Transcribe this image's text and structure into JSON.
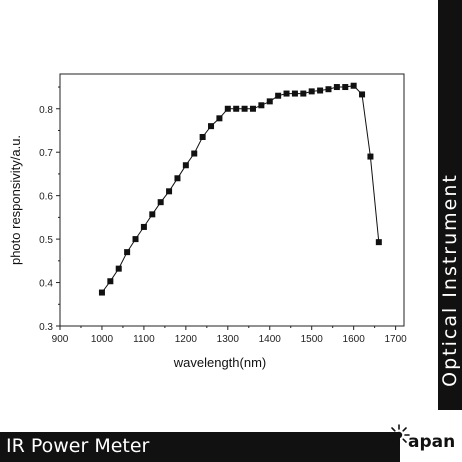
{
  "chart_data": {
    "type": "line",
    "title": "",
    "xlabel": "wavelength(nm)",
    "ylabel": "photo responsivity/a.u.",
    "xlim": [
      900,
      1720
    ],
    "ylim": [
      0.3,
      0.88
    ],
    "xticks": [
      900,
      1000,
      1100,
      1200,
      1300,
      1400,
      1500,
      1600,
      1700
    ],
    "yticks": [
      0.3,
      0.4,
      0.5,
      0.6,
      0.7,
      0.8
    ],
    "xtick_labels": [
      "900",
      "1000",
      "1100",
      "1200",
      "1300",
      "1400",
      "1500",
      "1600",
      "1700"
    ],
    "ytick_labels": [
      "0.3",
      "0.4",
      "0.5",
      "0.6",
      "0.7",
      "0.8"
    ],
    "grid": false,
    "marker": "square",
    "series_color": "#111111",
    "series": [
      {
        "x": [
          1000,
          1020,
          1040,
          1060,
          1080,
          1100,
          1120,
          1140,
          1160,
          1180,
          1200,
          1220,
          1240,
          1260,
          1280,
          1300,
          1320,
          1340,
          1360,
          1380,
          1400,
          1420,
          1440,
          1460,
          1480,
          1500,
          1520,
          1540,
          1560,
          1580,
          1600,
          1620,
          1640,
          1660
        ],
        "y": [
          0.377,
          0.403,
          0.432,
          0.47,
          0.5,
          0.528,
          0.557,
          0.585,
          0.61,
          0.64,
          0.67,
          0.697,
          0.735,
          0.76,
          0.778,
          0.8,
          0.8,
          0.8,
          0.8,
          0.808,
          0.817,
          0.83,
          0.835,
          0.835,
          0.835,
          0.84,
          0.842,
          0.845,
          0.85,
          0.85,
          0.853,
          0.833,
          0.69,
          0.493
        ]
      }
    ]
  },
  "side_label": "Optical Instrument",
  "footer_label": "IR Power Meter",
  "brand": {
    "logo_text": "apan",
    "logo_icon": "sunburst-icon",
    "logo_color": "#111111"
  },
  "colors": {
    "band": "#111111",
    "band_text": "#ffffff",
    "axis": "#222222"
  }
}
